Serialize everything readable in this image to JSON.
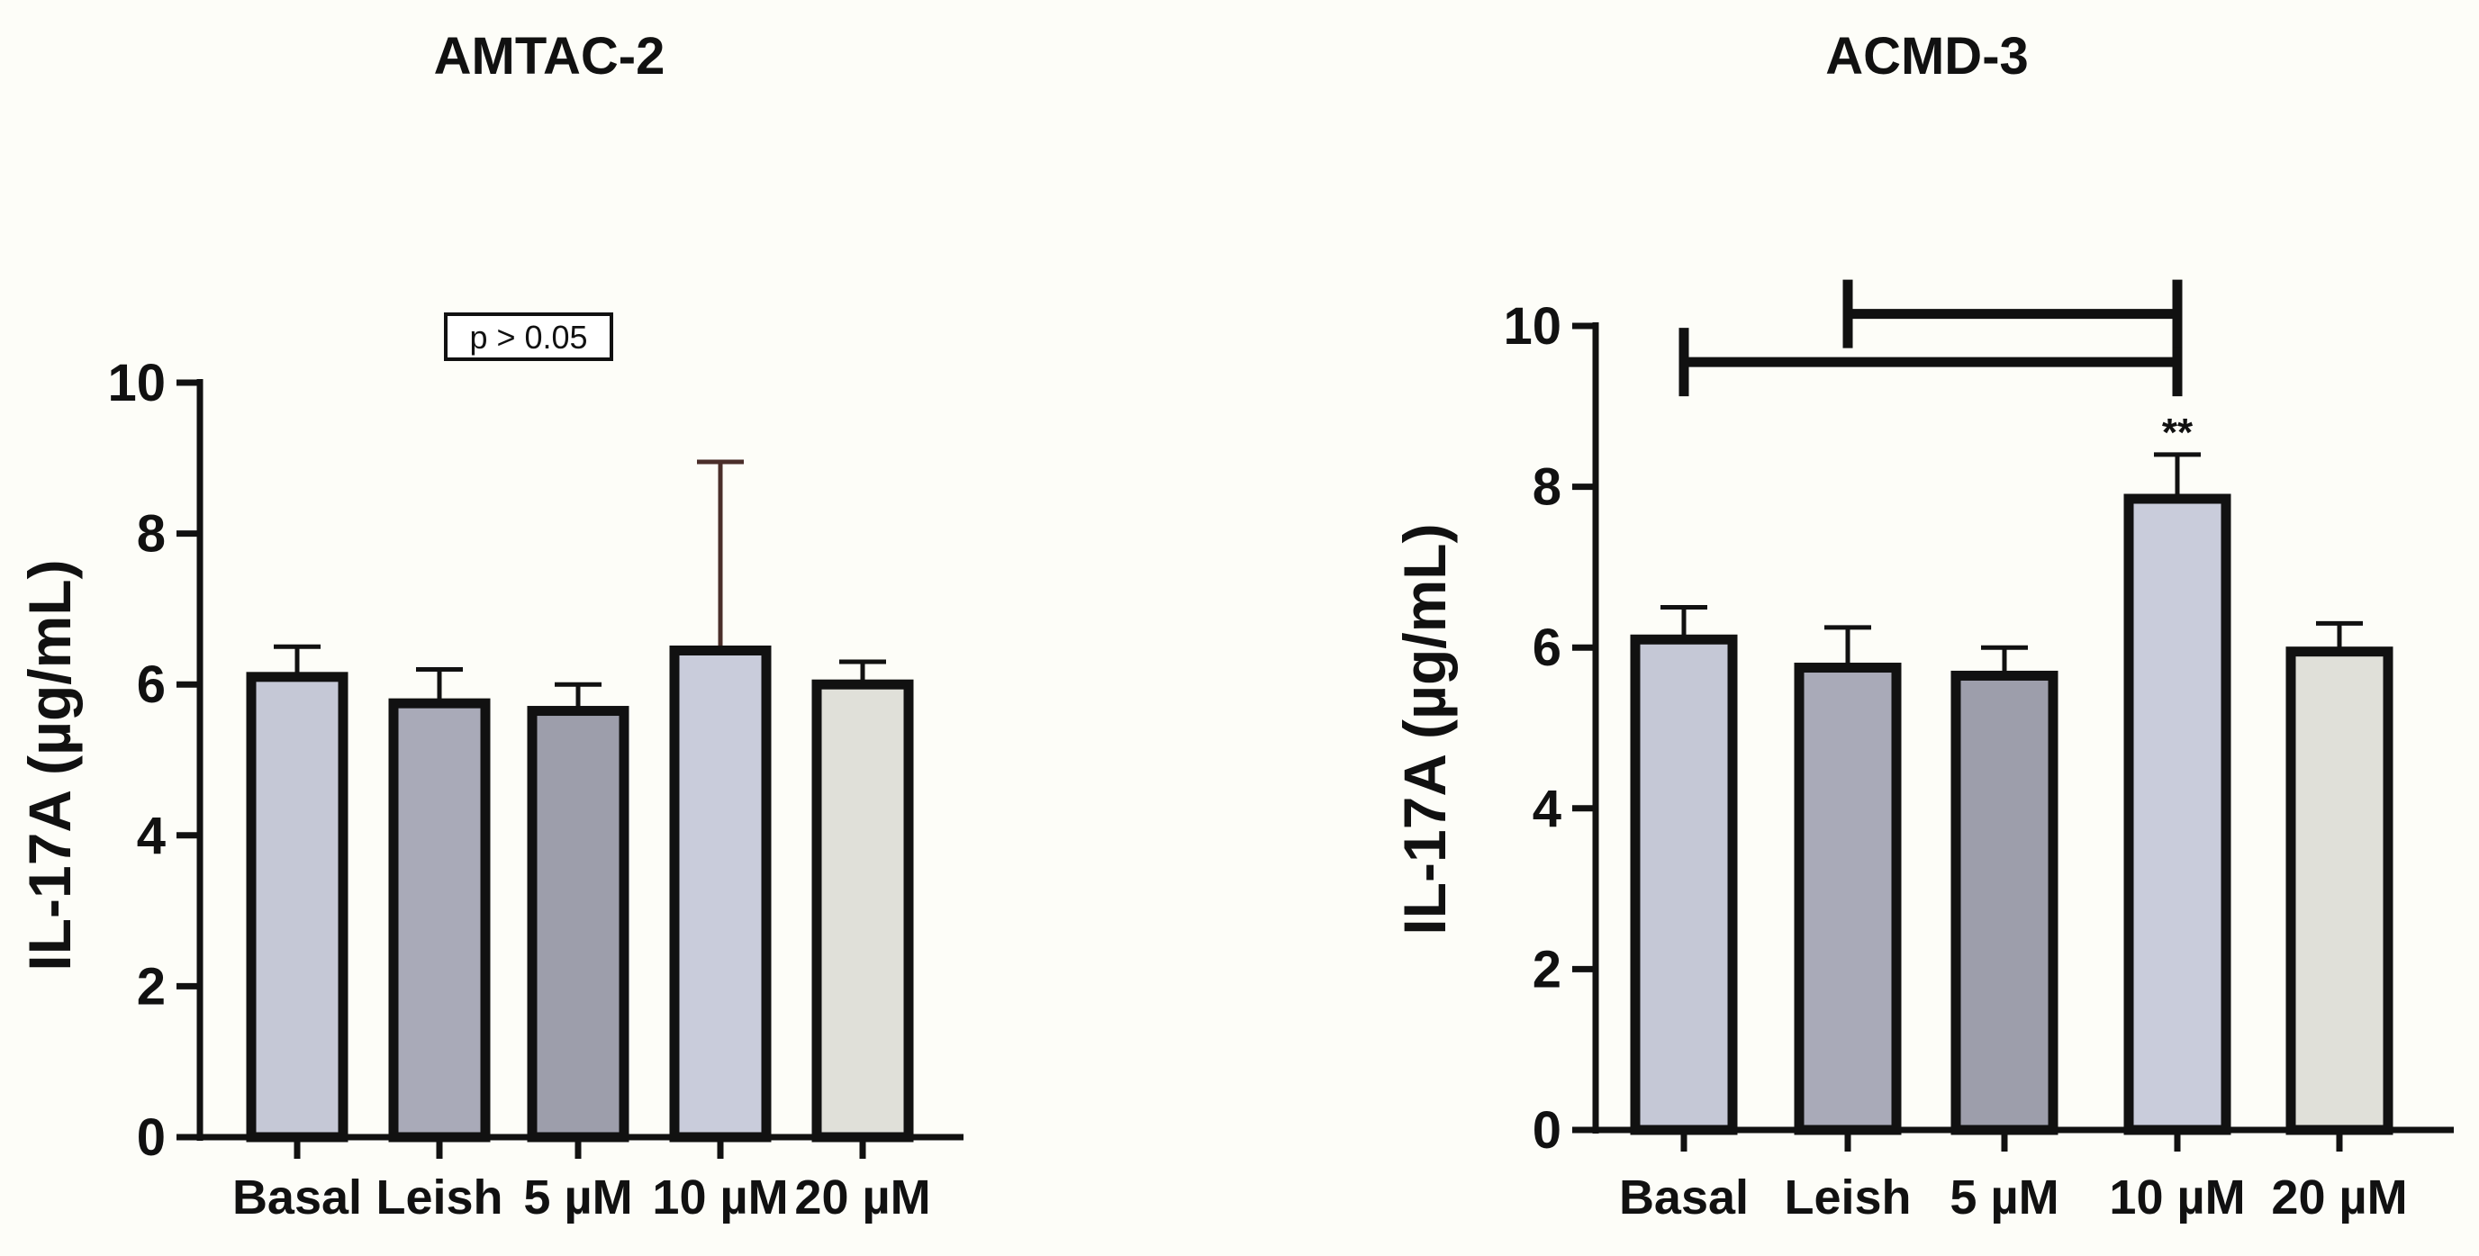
{
  "chart_data": [
    {
      "type": "bar",
      "title": "AMTAC-2",
      "ylabel": "IL-17A (µg/mL)",
      "xlabel": "",
      "ylim": [
        0,
        10
      ],
      "yticks": [
        "0",
        "2",
        "4",
        "6",
        "8",
        "10"
      ],
      "categories": [
        "Basal",
        "Leish",
        "5 µM",
        "10 µM",
        "20 µM"
      ],
      "values": [
        6.1,
        5.75,
        5.65,
        6.45,
        6.0
      ],
      "errors": [
        0.4,
        0.45,
        0.35,
        2.5,
        0.3
      ],
      "colors": [
        "#c5c8d6",
        "#a9aab8",
        "#9d9eab",
        "#c9ccdb",
        "#e0e0d9"
      ],
      "annotation_box": "p > 0.05"
    },
    {
      "type": "bar",
      "title": "ACMD-3",
      "ylabel": "IL-17A (µg/mL)",
      "xlabel": "",
      "ylim": [
        0,
        10
      ],
      "yticks": [
        "0",
        "2",
        "4",
        "6",
        "8",
        "10"
      ],
      "categories": [
        "Basal",
        "Leish",
        "5 µM",
        "10 µM",
        "20 µM"
      ],
      "values": [
        6.1,
        5.75,
        5.65,
        7.85,
        5.95
      ],
      "errors": [
        0.4,
        0.5,
        0.35,
        0.55,
        0.35
      ],
      "colors": [
        "#c5c8d6",
        "#a9aab8",
        "#9d9eab",
        "#c9ccdb",
        "#e0e0d9"
      ],
      "significance": {
        "label": "**",
        "bar_index": 3,
        "brackets": [
          {
            "from": 0,
            "to": 3,
            "level": 9.55
          },
          {
            "from": 1,
            "to": 3,
            "level": 10.15
          }
        ]
      }
    }
  ]
}
